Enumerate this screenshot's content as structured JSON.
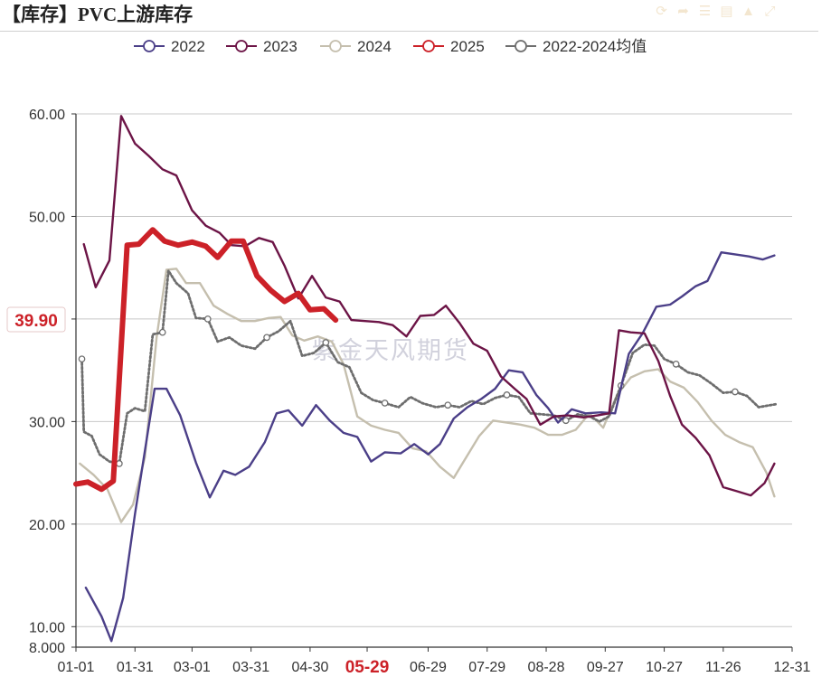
{
  "title": "【库存】PVC上游库存",
  "toolbar": {
    "icons": [
      "refresh-icon",
      "share-icon",
      "list-icon",
      "document-icon",
      "bell-icon",
      "expand-icon"
    ]
  },
  "watermark": "紫金天风期货",
  "current_value_label": "39.90",
  "highlight_x_label": "05-29",
  "colors": {
    "s2022": "#4b3f88",
    "s2023": "#6c1446",
    "s2024": "#c5bfae",
    "s2025": "#cc2128",
    "avg": "#6e6e6e",
    "grid": "#c8c8c8",
    "axis": "#333333"
  },
  "chart_data": {
    "type": "line",
    "title": "【库存】PVC上游库存",
    "x_axis": {
      "type": "day-of-year",
      "min_day": 1,
      "max_day": 365
    },
    "y_axis": {
      "min": 8.0,
      "max": 60.0,
      "ticks": [
        8.0,
        10.0,
        20.0,
        30.0,
        40.0,
        50.0,
        60.0
      ],
      "tick_labels": [
        "8.000",
        "10.00",
        "20.00",
        "30.00",
        "39.90",
        "50.00",
        "60.00"
      ]
    },
    "x_ticks": [
      {
        "label": "01-01",
        "day": 1
      },
      {
        "label": "01-31",
        "day": 31
      },
      {
        "label": "03-01",
        "day": 60
      },
      {
        "label": "03-31",
        "day": 90
      },
      {
        "label": "04-30",
        "day": 120
      },
      {
        "label": "05-29",
        "day": 149
      },
      {
        "label": "06-29",
        "day": 180
      },
      {
        "label": "07-29",
        "day": 210
      },
      {
        "label": "08-28",
        "day": 240
      },
      {
        "label": "09-27",
        "day": 270
      },
      {
        "label": "10-27",
        "day": 300
      },
      {
        "label": "11-26",
        "day": 330
      },
      {
        "label": "12-31",
        "day": 365
      }
    ],
    "legend": [
      "2022",
      "2023",
      "2024",
      "2025",
      "2022-2024均值"
    ],
    "grid": true,
    "legend_position": "top-center",
    "series": [
      {
        "name": "2022",
        "color": "#4b3f88",
        "points": [
          [
            6,
            13.8
          ],
          [
            14,
            11.0
          ],
          [
            19,
            8.6
          ],
          [
            25,
            12.8
          ],
          [
            31,
            21.0
          ],
          [
            41,
            33.2
          ],
          [
            47,
            33.2
          ],
          [
            54,
            30.6
          ],
          [
            62,
            26.0
          ],
          [
            69,
            22.6
          ],
          [
            76,
            25.2
          ],
          [
            82,
            24.8
          ],
          [
            89,
            25.6
          ],
          [
            97,
            28.0
          ],
          [
            103,
            30.8
          ],
          [
            109,
            31.1
          ],
          [
            116,
            29.6
          ],
          [
            123,
            31.6
          ],
          [
            130,
            30.1
          ],
          [
            137,
            28.9
          ],
          [
            144,
            28.5
          ],
          [
            151,
            26.1
          ],
          [
            158,
            27.0
          ],
          [
            166,
            26.9
          ],
          [
            173,
            27.8
          ],
          [
            180,
            26.8
          ],
          [
            186,
            27.8
          ],
          [
            193,
            30.3
          ],
          [
            200,
            31.4
          ],
          [
            207,
            32.2
          ],
          [
            214,
            33.2
          ],
          [
            221,
            35.0
          ],
          [
            228,
            34.8
          ],
          [
            235,
            32.6
          ],
          [
            241,
            31.3
          ],
          [
            246,
            29.9
          ],
          [
            253,
            31.2
          ],
          [
            260,
            30.8
          ],
          [
            268,
            30.9
          ],
          [
            275,
            30.8
          ],
          [
            282,
            36.6
          ],
          [
            289,
            38.6
          ],
          [
            296,
            41.2
          ],
          [
            303,
            41.4
          ],
          [
            309,
            42.2
          ],
          [
            316,
            43.2
          ],
          [
            322,
            43.7
          ],
          [
            329,
            46.5
          ],
          [
            336,
            46.3
          ],
          [
            343,
            46.1
          ],
          [
            350,
            45.8
          ],
          [
            356,
            46.2
          ]
        ]
      },
      {
        "name": "2023",
        "color": "#6c1446",
        "points": [
          [
            5,
            47.3
          ],
          [
            11,
            43.1
          ],
          [
            18,
            45.7
          ],
          [
            24,
            59.8
          ],
          [
            31,
            57.1
          ],
          [
            38,
            55.9
          ],
          [
            45,
            54.6
          ],
          [
            52,
            54.0
          ],
          [
            60,
            50.6
          ],
          [
            67,
            49.1
          ],
          [
            74,
            48.4
          ],
          [
            80,
            47.2
          ],
          [
            87,
            47.1
          ],
          [
            94,
            47.9
          ],
          [
            101,
            47.5
          ],
          [
            107,
            45.2
          ],
          [
            114,
            42.0
          ],
          [
            121,
            44.2
          ],
          [
            128,
            42.1
          ],
          [
            135,
            41.7
          ],
          [
            141,
            39.9
          ],
          [
            148,
            39.8
          ],
          [
            155,
            39.7
          ],
          [
            162,
            39.4
          ],
          [
            169,
            38.3
          ],
          [
            176,
            40.3
          ],
          [
            183,
            40.4
          ],
          [
            189,
            41.3
          ],
          [
            196,
            39.6
          ],
          [
            203,
            37.6
          ],
          [
            210,
            36.9
          ],
          [
            217,
            34.4
          ],
          [
            224,
            33.2
          ],
          [
            230,
            32.2
          ],
          [
            237,
            29.7
          ],
          [
            244,
            30.5
          ],
          [
            251,
            30.6
          ],
          [
            259,
            30.4
          ],
          [
            266,
            30.6
          ],
          [
            272,
            30.8
          ],
          [
            277,
            38.9
          ],
          [
            283,
            38.7
          ],
          [
            290,
            38.6
          ],
          [
            297,
            35.9
          ],
          [
            303,
            32.5
          ],
          [
            309,
            29.7
          ],
          [
            316,
            28.4
          ],
          [
            323,
            26.7
          ],
          [
            330,
            23.6
          ],
          [
            337,
            23.2
          ],
          [
            344,
            22.8
          ],
          [
            351,
            24.0
          ],
          [
            356,
            25.9
          ]
        ]
      },
      {
        "name": "2024",
        "color": "#c5bfae",
        "points": [
          [
            3,
            25.9
          ],
          [
            10,
            24.8
          ],
          [
            17,
            23.4
          ],
          [
            24,
            20.2
          ],
          [
            30,
            21.9
          ],
          [
            36,
            26.5
          ],
          [
            42,
            38.2
          ],
          [
            47,
            44.8
          ],
          [
            52,
            44.9
          ],
          [
            57,
            43.5
          ],
          [
            64,
            43.5
          ],
          [
            71,
            41.3
          ],
          [
            78,
            40.5
          ],
          [
            85,
            39.8
          ],
          [
            92,
            39.8
          ],
          [
            99,
            40.1
          ],
          [
            105,
            40.2
          ],
          [
            111,
            38.4
          ],
          [
            117,
            37.9
          ],
          [
            124,
            38.3
          ],
          [
            131,
            37.8
          ],
          [
            137,
            35.6
          ],
          [
            144,
            30.5
          ],
          [
            151,
            29.6
          ],
          [
            158,
            29.2
          ],
          [
            165,
            28.9
          ],
          [
            172,
            27.4
          ],
          [
            179,
            27.1
          ],
          [
            186,
            25.6
          ],
          [
            193,
            24.5
          ],
          [
            199,
            26.4
          ],
          [
            206,
            28.6
          ],
          [
            213,
            30.1
          ],
          [
            220,
            29.9
          ],
          [
            227,
            29.7
          ],
          [
            234,
            29.4
          ],
          [
            241,
            28.7
          ],
          [
            248,
            28.7
          ],
          [
            255,
            29.2
          ],
          [
            262,
            30.8
          ],
          [
            269,
            29.4
          ],
          [
            276,
            32.6
          ],
          [
            283,
            34.3
          ],
          [
            290,
            34.9
          ],
          [
            297,
            35.1
          ],
          [
            303,
            33.9
          ],
          [
            310,
            33.3
          ],
          [
            317,
            31.9
          ],
          [
            324,
            30.1
          ],
          [
            331,
            28.7
          ],
          [
            338,
            28.0
          ],
          [
            345,
            27.5
          ],
          [
            352,
            25.0
          ],
          [
            356,
            22.7
          ]
        ]
      },
      {
        "name": "2025",
        "color": "#cc2128",
        "points": [
          [
            1,
            23.9
          ],
          [
            7,
            24.1
          ],
          [
            14,
            23.4
          ],
          [
            20,
            24.2
          ],
          [
            27,
            47.2
          ],
          [
            33,
            47.3
          ],
          [
            40,
            48.7
          ],
          [
            46,
            47.6
          ],
          [
            53,
            47.2
          ],
          [
            60,
            47.5
          ],
          [
            67,
            47.1
          ],
          [
            73,
            46.0
          ],
          [
            80,
            47.6
          ],
          [
            86,
            47.6
          ],
          [
            93,
            44.2
          ],
          [
            100,
            42.8
          ],
          [
            107,
            41.7
          ],
          [
            114,
            42.5
          ],
          [
            120,
            40.9
          ],
          [
            127,
            41.0
          ],
          [
            133,
            39.9
          ]
        ]
      },
      {
        "name": "2022-2024均值",
        "color": "#6e6e6e",
        "points": [
          [
            4,
            36.1
          ],
          [
            5,
            29.0
          ],
          [
            9,
            28.6
          ],
          [
            13,
            26.8
          ],
          [
            18,
            26.1
          ],
          [
            23,
            25.9
          ],
          [
            27,
            30.8
          ],
          [
            31,
            31.3
          ],
          [
            36,
            31.0
          ],
          [
            40,
            38.5
          ],
          [
            45,
            38.7
          ],
          [
            48,
            44.7
          ],
          [
            52,
            43.5
          ],
          [
            58,
            42.5
          ],
          [
            62,
            40.1
          ],
          [
            68,
            40.0
          ],
          [
            73,
            37.8
          ],
          [
            79,
            38.2
          ],
          [
            85,
            37.4
          ],
          [
            92,
            37.1
          ],
          [
            98,
            38.2
          ],
          [
            104,
            38.8
          ],
          [
            110,
            39.8
          ],
          [
            116,
            36.4
          ],
          [
            122,
            36.7
          ],
          [
            128,
            37.7
          ],
          [
            134,
            35.8
          ],
          [
            140,
            35.3
          ],
          [
            146,
            32.8
          ],
          [
            152,
            32.1
          ],
          [
            158,
            31.8
          ],
          [
            165,
            31.4
          ],
          [
            171,
            32.4
          ],
          [
            177,
            31.8
          ],
          [
            184,
            31.4
          ],
          [
            190,
            31.6
          ],
          [
            196,
            31.4
          ],
          [
            202,
            32.0
          ],
          [
            208,
            31.7
          ],
          [
            214,
            32.3
          ],
          [
            220,
            32.6
          ],
          [
            226,
            32.4
          ],
          [
            232,
            30.8
          ],
          [
            238,
            30.7
          ],
          [
            244,
            30.6
          ],
          [
            250,
            30.1
          ],
          [
            256,
            30.7
          ],
          [
            262,
            30.5
          ],
          [
            267,
            30.0
          ],
          [
            272,
            30.5
          ],
          [
            278,
            33.5
          ],
          [
            284,
            36.7
          ],
          [
            290,
            37.5
          ],
          [
            295,
            37.4
          ],
          [
            300,
            36.1
          ],
          [
            306,
            35.6
          ],
          [
            312,
            34.8
          ],
          [
            318,
            34.5
          ],
          [
            324,
            33.7
          ],
          [
            330,
            32.8
          ],
          [
            336,
            32.9
          ],
          [
            342,
            32.5
          ],
          [
            348,
            31.4
          ],
          [
            354,
            31.6
          ],
          [
            357,
            31.7
          ]
        ]
      }
    ]
  }
}
